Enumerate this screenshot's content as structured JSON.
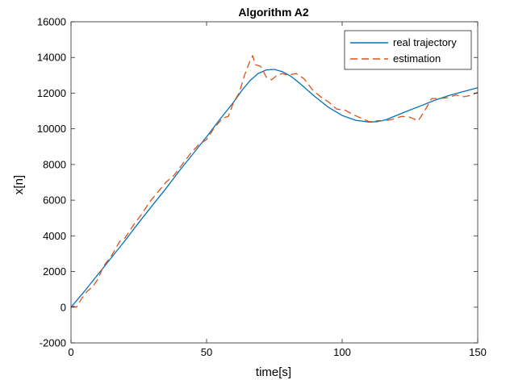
{
  "chart_data": {
    "type": "line",
    "title": "Algorithm A2",
    "xlabel": "time[s]",
    "ylabel": "x[n]",
    "xlim": [
      0,
      150
    ],
    "ylim": [
      -2000,
      16000
    ],
    "xticks": [
      0,
      50,
      100,
      150
    ],
    "yticks": [
      -2000,
      0,
      2000,
      4000,
      6000,
      8000,
      10000,
      12000,
      14000,
      16000
    ],
    "grid": false,
    "legend_position": "top-right",
    "series": [
      {
        "name": "real trajectory",
        "color": "#0072BD",
        "style": "solid",
        "x": [
          0,
          5,
          10,
          15,
          20,
          25,
          30,
          35,
          40,
          45,
          50,
          55,
          60,
          63,
          66,
          69,
          72,
          75,
          78,
          81,
          84,
          87,
          90,
          95,
          100,
          105,
          110,
          113,
          116,
          120,
          125,
          130,
          135,
          140,
          145,
          150
        ],
        "y": [
          0,
          900,
          1850,
          2800,
          3750,
          4750,
          5700,
          6650,
          7650,
          8600,
          9550,
          10550,
          11500,
          12150,
          12700,
          13100,
          13300,
          13330,
          13200,
          12950,
          12600,
          12200,
          11800,
          11200,
          10750,
          10480,
          10380,
          10400,
          10500,
          10750,
          11050,
          11350,
          11650,
          11900,
          12100,
          12300
        ]
      },
      {
        "name": "estimation",
        "color": "#D95319",
        "style": "dashed",
        "x": [
          0,
          1,
          2,
          4,
          6,
          8,
          10,
          12,
          15,
          18,
          20,
          23,
          26,
          29,
          32,
          35,
          38,
          41,
          44,
          47,
          50,
          53,
          56,
          58,
          60,
          62,
          64,
          66,
          67,
          68,
          70,
          72,
          74,
          76,
          78,
          80,
          83,
          86,
          89,
          92,
          95,
          98,
          101,
          104,
          107,
          110,
          113,
          116,
          119,
          122,
          125,
          128,
          130,
          133,
          136,
          139,
          142,
          145,
          148,
          150
        ],
        "y": [
          0,
          50,
          0,
          500,
          900,
          1150,
          1600,
          2300,
          2900,
          3700,
          3900,
          4600,
          5200,
          5900,
          6450,
          7000,
          7400,
          8000,
          8600,
          9100,
          9400,
          10100,
          10600,
          10700,
          11500,
          12000,
          13000,
          13800,
          14100,
          13600,
          13500,
          12900,
          12750,
          13000,
          13100,
          13000,
          13100,
          12800,
          12200,
          11800,
          11500,
          11100,
          11050,
          10800,
          10600,
          10400,
          10450,
          10450,
          10550,
          10700,
          10650,
          10450,
          10900,
          11700,
          11700,
          11750,
          11900,
          11800,
          11900,
          12050
        ]
      }
    ]
  }
}
